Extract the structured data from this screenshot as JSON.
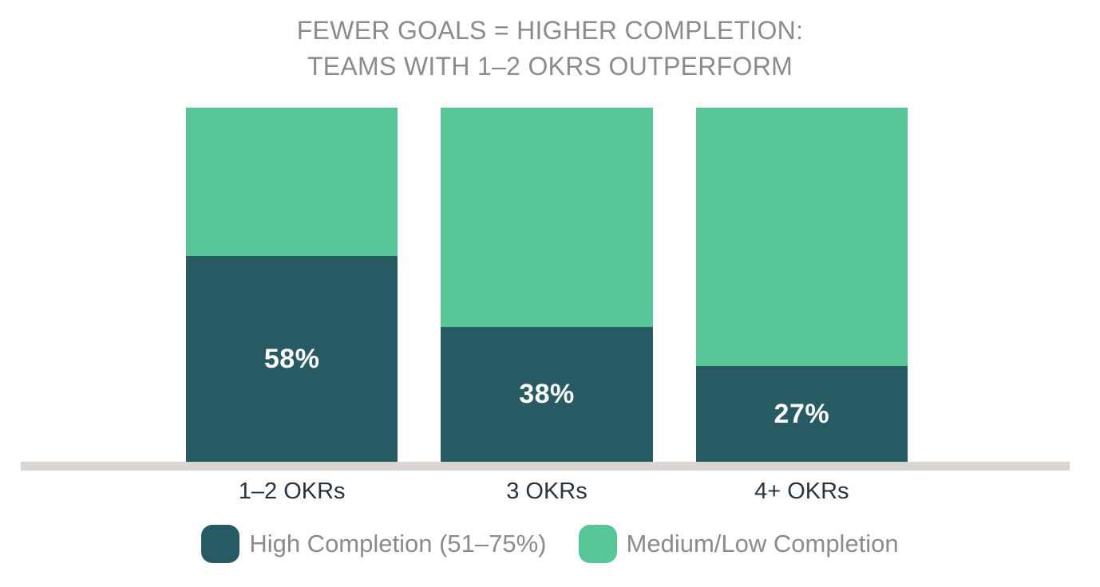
{
  "title": {
    "line1": "FEWER GOALS = HIGHER COMPLETION:",
    "line2": "TEAMS WITH 1–2 OKRS OUTPERFORM"
  },
  "colors": {
    "high_completion": "#275a63",
    "medium_low_completion": "#57c596",
    "title_text": "#8b8b8b",
    "axis_label_text": "#273440",
    "baseline": "#d8d5d2",
    "value_label_text": "#ffffff",
    "background": "#ffffff"
  },
  "chart_data": {
    "type": "bar",
    "stacked": true,
    "percent_stacked": true,
    "title": "FEWER GOALS = HIGHER COMPLETION: TEAMS WITH 1–2 OKRS OUTPERFORM",
    "xlabel": "",
    "ylabel": "",
    "ylim": [
      0,
      100
    ],
    "grid": false,
    "legend_position": "bottom",
    "categories": [
      "1–2 OKRs",
      "3 OKRs",
      "4+ OKRs"
    ],
    "series": [
      {
        "name": "High Completion (51–75%)",
        "color": "#275a63",
        "values": [
          58,
          38,
          27
        ]
      },
      {
        "name": "Medium/Low Completion",
        "color": "#57c596",
        "values": [
          42,
          62,
          73
        ]
      }
    ],
    "value_labels": [
      "58%",
      "38%",
      "27%"
    ]
  }
}
